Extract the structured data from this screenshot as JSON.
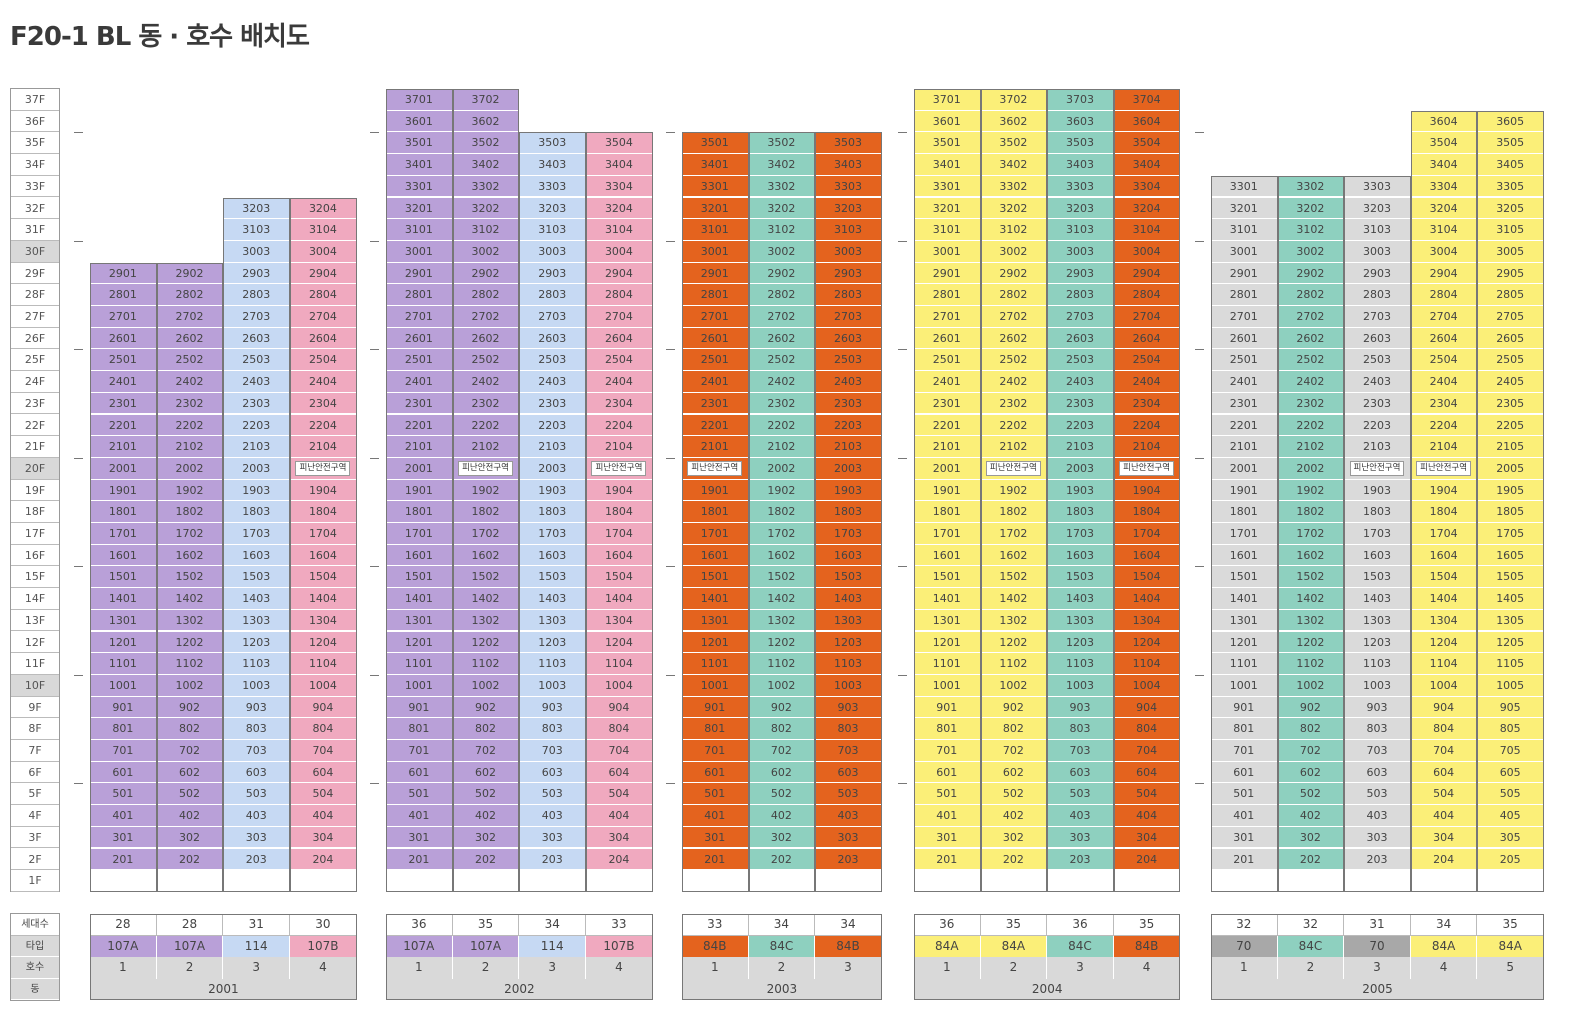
{
  "title": "F20-1 BL 동 · 호수 배치도",
  "colors": {
    "purple": "#b9a0d8",
    "lightblue": "#c6d9f3",
    "pink": "#f0a9bf",
    "orange": "#e4631e",
    "teal": "#8ed0bf",
    "yellow": "#fbef78",
    "lightgray": "#dadada",
    "darkgray": "#a8a8a8",
    "white": "#ffffff"
  },
  "floors": [
    "37F",
    "36F",
    "35F",
    "34F",
    "33F",
    "32F",
    "31F",
    "30F",
    "29F",
    "28F",
    "27F",
    "26F",
    "25F",
    "24F",
    "23F",
    "22F",
    "21F",
    "20F",
    "19F",
    "18F",
    "17F",
    "16F",
    "15F",
    "14F",
    "13F",
    "12F",
    "11F",
    "10F",
    "9F",
    "8F",
    "7F",
    "6F",
    "5F",
    "4F",
    "3F",
    "2F",
    "1F"
  ],
  "highlight_floors": [
    "30F",
    "20F",
    "10F"
  ],
  "legend_labels": [
    "세대수",
    "타입",
    "호수",
    "동"
  ],
  "shelter_label": "피난안전구역",
  "buildings": [
    {
      "dong": "2001",
      "columns": [
        {
          "line": 1,
          "top_floor": 29,
          "color": "purple",
          "count": "28",
          "type": "107A",
          "type_color": "purple",
          "shelter_floor": null
        },
        {
          "line": 2,
          "top_floor": 29,
          "color": "purple",
          "count": "28",
          "type": "107A",
          "type_color": "purple",
          "shelter_floor": null
        },
        {
          "line": 3,
          "top_floor": 32,
          "color": "lightblue",
          "count": "31",
          "type": "114",
          "type_color": "lightblue",
          "shelter_floor": null
        },
        {
          "line": 4,
          "top_floor": 32,
          "color": "pink",
          "count": "30",
          "type": "107B",
          "type_color": "pink",
          "shelter_floor": 20
        }
      ]
    },
    {
      "dong": "2002",
      "columns": [
        {
          "line": 1,
          "top_floor": 37,
          "color": "purple",
          "count": "36",
          "type": "107A",
          "type_color": "purple",
          "shelter_floor": null
        },
        {
          "line": 2,
          "top_floor": 37,
          "color": "purple",
          "count": "35",
          "type": "107A",
          "type_color": "purple",
          "shelter_floor": 20
        },
        {
          "line": 3,
          "top_floor": 35,
          "color": "lightblue",
          "count": "34",
          "type": "114",
          "type_color": "lightblue",
          "shelter_floor": null
        },
        {
          "line": 4,
          "top_floor": 35,
          "color": "pink",
          "count": "33",
          "type": "107B",
          "type_color": "pink",
          "shelter_floor": 20
        }
      ]
    },
    {
      "dong": "2003",
      "columns": [
        {
          "line": 1,
          "top_floor": 35,
          "color": "orange",
          "count": "33",
          "type": "84B",
          "type_color": "orange",
          "shelter_floor": 20
        },
        {
          "line": 2,
          "top_floor": 35,
          "color": "teal",
          "count": "34",
          "type": "84C",
          "type_color": "teal",
          "shelter_floor": null
        },
        {
          "line": 3,
          "top_floor": 35,
          "color": "orange",
          "count": "34",
          "type": "84B",
          "type_color": "orange",
          "shelter_floor": null
        }
      ]
    },
    {
      "dong": "2004",
      "columns": [
        {
          "line": 1,
          "top_floor": 37,
          "color": "yellow",
          "count": "36",
          "type": "84A",
          "type_color": "yellow",
          "shelter_floor": null
        },
        {
          "line": 2,
          "top_floor": 37,
          "color": "yellow",
          "count": "35",
          "type": "84A",
          "type_color": "yellow",
          "shelter_floor": 20
        },
        {
          "line": 3,
          "top_floor": 37,
          "color": "teal",
          "count": "36",
          "type": "84C",
          "type_color": "teal",
          "shelter_floor": null
        },
        {
          "line": 4,
          "top_floor": 37,
          "color": "orange",
          "count": "35",
          "type": "84B",
          "type_color": "orange",
          "shelter_floor": 20
        }
      ]
    },
    {
      "dong": "2005",
      "columns": [
        {
          "line": 1,
          "top_floor": 33,
          "color": "lightgray",
          "count": "32",
          "type": "70",
          "type_color": "darkgray",
          "shelter_floor": null
        },
        {
          "line": 2,
          "top_floor": 33,
          "color": "teal",
          "count": "32",
          "type": "84C",
          "type_color": "teal",
          "shelter_floor": null
        },
        {
          "line": 3,
          "top_floor": 33,
          "color": "lightgray",
          "count": "31",
          "type": "70",
          "type_color": "darkgray",
          "shelter_floor": 20
        },
        {
          "line": 4,
          "top_floor": 36,
          "color": "yellow",
          "count": "34",
          "type": "84A",
          "type_color": "yellow",
          "shelter_floor": 20
        },
        {
          "line": 5,
          "top_floor": 36,
          "color": "yellow",
          "count": "35",
          "type": "84A",
          "type_color": "yellow",
          "shelter_floor": null
        }
      ]
    }
  ]
}
